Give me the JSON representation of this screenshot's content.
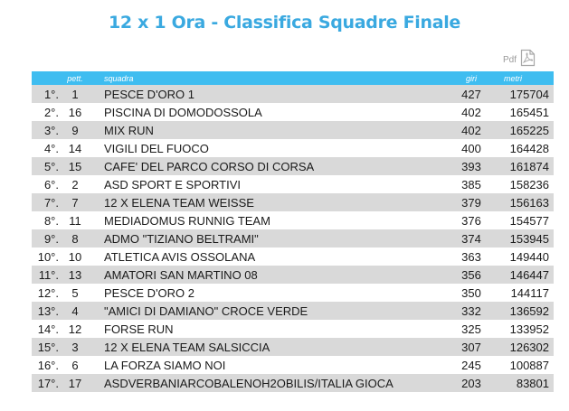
{
  "title": "12 x 1 Ora - Classifica Squadre Finale",
  "pdf_label": "Pdf",
  "pdf_icon": "pdf-file-icon",
  "columns": {
    "pos": "",
    "pett": "pett.",
    "squadra": "squadra",
    "giri": "giri",
    "metri": "metri"
  },
  "rows": [
    {
      "pos": "1°.",
      "pett": "1",
      "squadra": "PESCE D'ORO 1",
      "giri": "427",
      "metri": "175704"
    },
    {
      "pos": "2°.",
      "pett": "16",
      "squadra": "PISCINA DI DOMODOSSOLA",
      "giri": "402",
      "metri": "165451"
    },
    {
      "pos": "3°.",
      "pett": "9",
      "squadra": "MIX RUN",
      "giri": "402",
      "metri": "165225"
    },
    {
      "pos": "4°.",
      "pett": "14",
      "squadra": "VIGILI DEL FUOCO",
      "giri": "400",
      "metri": "164428"
    },
    {
      "pos": "5°.",
      "pett": "15",
      "squadra": "CAFE' DEL PARCO CORSO DI CORSA",
      "giri": "393",
      "metri": "161874"
    },
    {
      "pos": "6°.",
      "pett": "2",
      "squadra": "ASD SPORT E SPORTIVI",
      "giri": "385",
      "metri": "158236"
    },
    {
      "pos": "7°.",
      "pett": "7",
      "squadra": "12 X ELENA TEAM WEISSE",
      "giri": "379",
      "metri": "156163"
    },
    {
      "pos": "8°.",
      "pett": "11",
      "squadra": "MEDIADOMUS RUNNIG TEAM",
      "giri": "376",
      "metri": "154577"
    },
    {
      "pos": "9°.",
      "pett": "8",
      "squadra": "ADMO \"TIZIANO BELTRAMI\"",
      "giri": "374",
      "metri": "153945"
    },
    {
      "pos": "10°.",
      "pett": "10",
      "squadra": "ATLETICA AVIS OSSOLANA",
      "giri": "363",
      "metri": "149440"
    },
    {
      "pos": "11°.",
      "pett": "13",
      "squadra": "AMATORI SAN MARTINO 08",
      "giri": "356",
      "metri": "146447"
    },
    {
      "pos": "12°.",
      "pett": "5",
      "squadra": "PESCE D'ORO 2",
      "giri": "350",
      "metri": "144117"
    },
    {
      "pos": "13°.",
      "pett": "4",
      "squadra": "\"AMICI DI DAMIANO\" CROCE VERDE",
      "giri": "332",
      "metri": "136592"
    },
    {
      "pos": "14°.",
      "pett": "12",
      "squadra": "FORSE RUN",
      "giri": "325",
      "metri": "133952"
    },
    {
      "pos": "15°.",
      "pett": "3",
      "squadra": "12 X ELENA TEAM SALSICCIA",
      "giri": "307",
      "metri": "126302"
    },
    {
      "pos": "16°.",
      "pett": "6",
      "squadra": "LA FORZA SIAMO NOI",
      "giri": "245",
      "metri": "100887"
    },
    {
      "pos": "17°.",
      "pett": "17",
      "squadra": "ASDVERBANIARCOBALENOH2OBILIS/ITALIA GIOCA",
      "giri": "203",
      "metri": "83801"
    }
  ]
}
